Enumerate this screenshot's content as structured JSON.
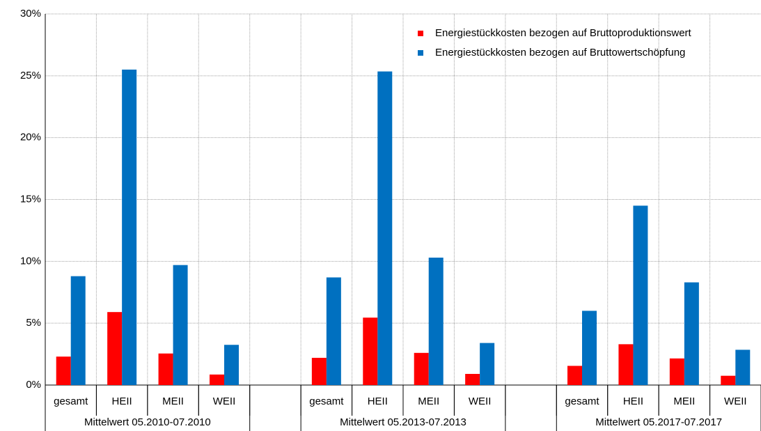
{
  "chart_data": {
    "type": "bar",
    "categories": [
      "gesamt",
      "HEII",
      "MEII",
      "WEII",
      null,
      "gesamt",
      "HEII",
      "MEII",
      "WEII",
      null,
      "gesamt",
      "HEII",
      "MEII",
      "WEII"
    ],
    "group_labels": [
      "Mittelwert 05.2010-07.2010",
      "Mittelwert 05.2013-07.2013",
      "Mittelwert 05.2017-07.2017"
    ],
    "series": [
      {
        "name": "Energiestückkosten bezogen auf Bruttoproduktionswert",
        "color": "#ff0000",
        "values": [
          2.3,
          5.9,
          2.55,
          0.85,
          null,
          2.2,
          5.45,
          2.6,
          0.9,
          null,
          1.55,
          3.3,
          2.15,
          0.75
        ]
      },
      {
        "name": "Energiestückkosten bezogen auf Bruttowertschöpfung",
        "color": "#0070c0",
        "values": [
          8.8,
          25.5,
          9.7,
          3.25,
          null,
          8.7,
          25.35,
          10.3,
          3.4,
          null,
          6.0,
          14.5,
          8.3,
          2.85
        ]
      }
    ],
    "ylim": [
      0,
      30
    ],
    "yticks": [
      {
        "value": 0,
        "label": "0%"
      },
      {
        "value": 5,
        "label": "5%"
      },
      {
        "value": 10,
        "label": "10%"
      },
      {
        "value": 15,
        "label": "15%"
      },
      {
        "value": 20,
        "label": "20%"
      },
      {
        "value": 25,
        "label": "25%"
      },
      {
        "value": 30,
        "label": "30%"
      }
    ],
    "grid": true,
    "legend": "upper right"
  }
}
